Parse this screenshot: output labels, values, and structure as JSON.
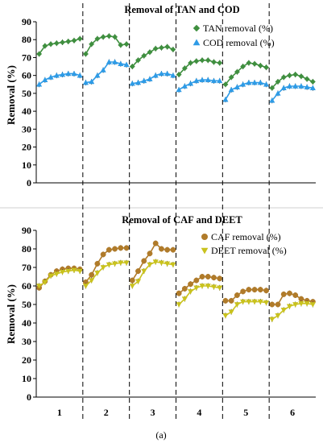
{
  "chart_data": [
    {
      "type": "line",
      "title": "Removal of TAN and COD",
      "xlabel": "",
      "ylabel": "Removal (%)",
      "ylim": [
        0,
        90
      ],
      "yticks": [
        "0",
        "10",
        "20",
        "30",
        "40",
        "50",
        "60",
        "70",
        "80",
        "90"
      ],
      "categories": [
        "1",
        "2",
        "3",
        "4",
        "5",
        "6"
      ],
      "legend_position": "top-right",
      "grid": false,
      "error_bars": true,
      "series": [
        {
          "name": "TAN removal (%)",
          "color": "#3f8f3f",
          "marker": "diamond",
          "groups": [
            [
              72,
              76.5,
              77.5,
              78,
              78.5,
              79,
              79.5,
              80.5
            ],
            [
              72,
              77.5,
              80.5,
              81.5,
              82,
              81.5,
              77,
              77.5
            ],
            [
              65,
              68.5,
              71,
              73,
              75,
              75.5,
              76,
              74.5
            ],
            [
              60.5,
              64,
              67,
              68,
              68.5,
              68.5,
              67.5,
              67
            ],
            [
              55,
              59,
              62,
              65,
              67,
              66.5,
              65.5,
              64.5
            ],
            [
              53,
              56.5,
              59,
              60,
              60.5,
              59.5,
              58,
              56.5
            ]
          ]
        },
        {
          "name": "COD removal (%)",
          "color": "#2e9be6",
          "marker": "triangle",
          "groups": [
            [
              55,
              57.5,
              59,
              60,
              60.5,
              61,
              61,
              60
            ],
            [
              56,
              56.5,
              60,
              63,
              67.5,
              67.5,
              66.5,
              66
            ],
            [
              55.5,
              56,
              57,
              58,
              60,
              61,
              61,
              60
            ],
            [
              52,
              54,
              55.5,
              57,
              57.5,
              57.5,
              57,
              57
            ],
            [
              46.5,
              52,
              53.5,
              55,
              56,
              56,
              56,
              55
            ],
            [
              46,
              50,
              53,
              54,
              54,
              54,
              53.5,
              53
            ]
          ]
        }
      ]
    },
    {
      "type": "line",
      "title": "Removal of CAF and DEET",
      "xlabel": "",
      "ylabel": "Removal (%)",
      "ylim": [
        0,
        90
      ],
      "yticks": [
        "0",
        "10",
        "20",
        "30",
        "40",
        "50",
        "60",
        "70",
        "80",
        "90"
      ],
      "categories": [
        "1",
        "2",
        "3",
        "4",
        "5",
        "6"
      ],
      "legend_position": "top-right",
      "grid": false,
      "error_bars": true,
      "series": [
        {
          "name": "CAF removal (%)",
          "color": "#b07b2a",
          "marker": "circle",
          "groups": [
            [
              59,
              62.5,
              66,
              68,
              69,
              69.5,
              69.5,
              69
            ],
            [
              62,
              66,
              72,
              77,
              79.5,
              80,
              80.5,
              80.5
            ],
            [
              63,
              68,
              73.5,
              77.5,
              83,
              80,
              79.5,
              79.5
            ],
            [
              56,
              58.5,
              61,
              63,
              65,
              65,
              64.5,
              64
            ],
            [
              52,
              52,
              55,
              57,
              58,
              58,
              58,
              57.5
            ],
            [
              50,
              50,
              55.5,
              56,
              55,
              53,
              52,
              51.5
            ]
          ]
        },
        {
          "name": "DEET removal (%)",
          "color": "#c9c21e",
          "marker": "triangle-down",
          "groups": [
            [
              60,
              62,
              65.5,
              66.5,
              67.5,
              68,
              68.5,
              68
            ],
            [
              60,
              63,
              67,
              70,
              71.5,
              72,
              72.5,
              72.5
            ],
            [
              60,
              62.5,
              68,
              71.5,
              73,
              72.5,
              72,
              71.5
            ],
            [
              50,
              53,
              57,
              59,
              60,
              60,
              59.5,
              59
            ],
            [
              44,
              46,
              50,
              51.5,
              51.5,
              51.5,
              51.5,
              51
            ],
            [
              42,
              44,
              47,
              49,
              50,
              50.5,
              50.5,
              50
            ]
          ]
        }
      ]
    }
  ],
  "caption": "(a)"
}
